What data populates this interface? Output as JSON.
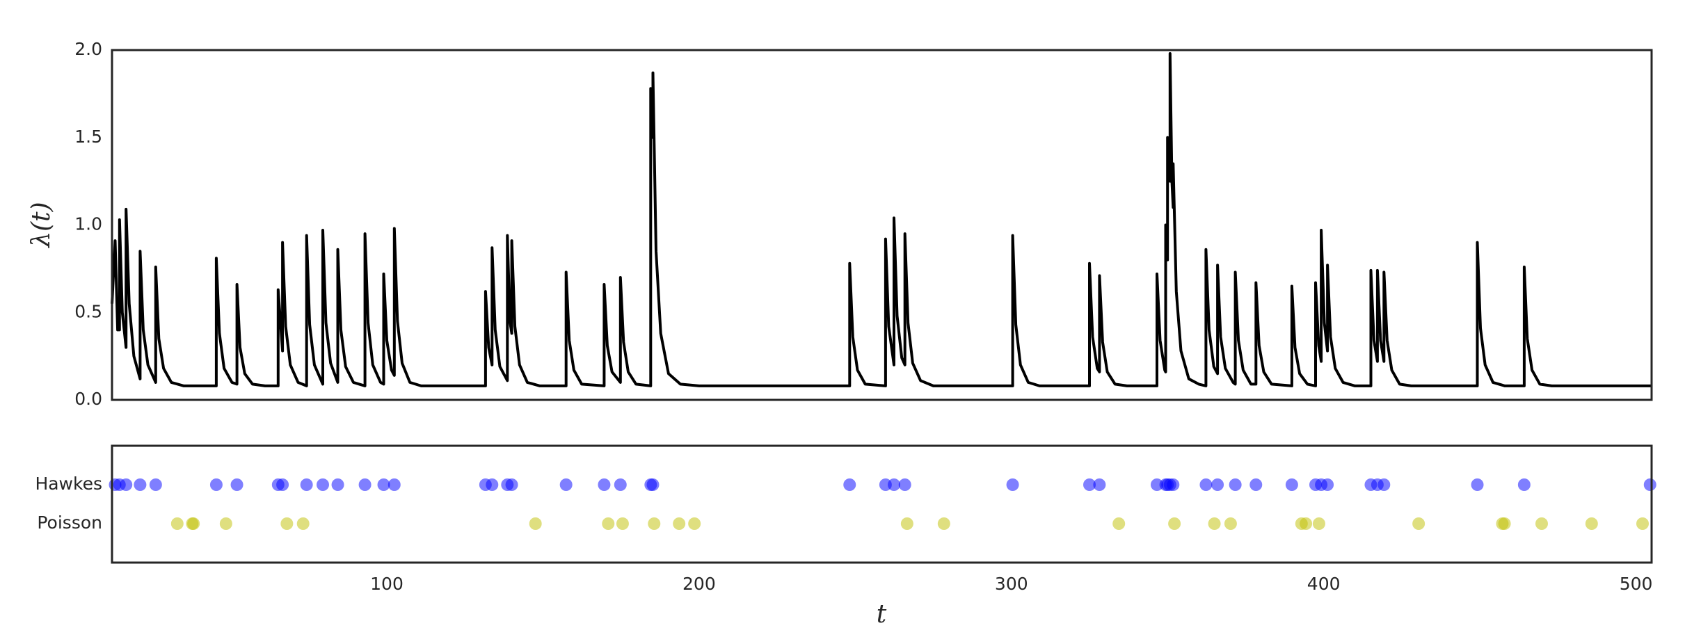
{
  "chart_data": [
    {
      "type": "line",
      "ylabel": "λ(t)",
      "color": "#000000",
      "xlim": [
        12,
        505
      ],
      "ylim": [
        0,
        2
      ],
      "yticks": [
        {
          "value": 0,
          "label": "0.0"
        },
        0.5,
        {
          "value": 1,
          "label": "1.0"
        },
        1.5,
        {
          "value": 2,
          "label": "2.0"
        }
      ],
      "x": [
        12,
        13,
        13.8,
        14.4,
        14.4,
        15.3,
        16.5,
        16.5,
        17.5,
        19,
        21,
        21,
        22,
        23.5,
        26,
        26,
        27,
        28.5,
        31,
        35,
        45.4,
        45.4,
        46.4,
        47.9,
        50.4,
        52,
        52,
        53,
        54.5,
        57,
        61,
        65.2,
        65.2,
        66.6,
        66.6,
        67.6,
        69.1,
        71.6,
        74.3,
        74.3,
        75.3,
        76.8,
        79.5,
        79.5,
        80.5,
        82,
        84.3,
        84.3,
        85.3,
        86.8,
        89.3,
        93,
        93,
        94,
        95.5,
        98,
        99,
        99,
        100,
        101.5,
        102.4,
        102.4,
        103.4,
        104.9,
        107.4,
        111,
        131.6,
        131.6,
        132.6,
        133.7,
        133.7,
        134.7,
        136.2,
        138.6,
        138.6,
        139.4,
        140,
        140,
        141,
        142.5,
        145,
        149,
        157.4,
        157.4,
        158.4,
        159.9,
        162.4,
        169.6,
        169.6,
        170.6,
        172.1,
        174.8,
        174.8,
        175.8,
        177.3,
        179.8,
        184.5,
        184.5,
        185.2,
        185.2,
        186.2,
        187.7,
        190.2,
        194,
        200,
        248.2,
        248.2,
        249.2,
        250.7,
        253.2,
        259.7,
        259.7,
        260.7,
        262.4,
        262.4,
        263.4,
        264.9,
        265.9,
        265.9,
        266.9,
        268.4,
        270.9,
        275,
        300.4,
        300.4,
        301.4,
        302.9,
        305.4,
        309,
        325,
        325,
        326,
        327.5,
        328.2,
        328.2,
        329.2,
        330.7,
        333.2,
        337,
        346.6,
        346.6,
        347.6,
        349.1,
        349.4,
        349.4,
        350,
        350,
        350.8,
        350.8,
        351.4,
        351.8,
        351.8,
        352.8,
        354.3,
        356.8,
        360,
        362.3,
        362.3,
        363.3,
        364.8,
        366,
        366,
        367,
        368.5,
        371,
        371.7,
        371.7,
        372.7,
        374.2,
        376.7,
        378.3,
        378.3,
        379.3,
        380.8,
        383.3,
        389.8,
        389.8,
        390.8,
        392.3,
        394.8,
        397.4,
        397.4,
        398.4,
        399.2,
        399.2,
        400.2,
        401.2,
        401.2,
        402.2,
        403.7,
        406.2,
        410,
        415.1,
        415.1,
        416.1,
        417.2,
        417.2,
        418.2,
        419.3,
        419.3,
        420.3,
        421.8,
        424.3,
        428,
        449.2,
        449.2,
        450.2,
        451.7,
        454.2,
        458,
        464.2,
        464.2,
        465.2,
        466.7,
        469.2,
        473,
        505
      ],
      "values": [
        0.55,
        0.91,
        0.4,
        0.4,
        1.03,
        0.5,
        0.3,
        1.09,
        0.55,
        0.25,
        0.12,
        0.85,
        0.4,
        0.2,
        0.1,
        0.76,
        0.35,
        0.18,
        0.1,
        0.08,
        0.08,
        0.81,
        0.38,
        0.18,
        0.1,
        0.09,
        0.66,
        0.3,
        0.15,
        0.09,
        0.08,
        0.08,
        0.63,
        0.28,
        0.9,
        0.42,
        0.2,
        0.1,
        0.08,
        0.94,
        0.43,
        0.2,
        0.09,
        0.97,
        0.44,
        0.21,
        0.1,
        0.86,
        0.4,
        0.19,
        0.1,
        0.08,
        0.95,
        0.44,
        0.2,
        0.1,
        0.09,
        0.72,
        0.34,
        0.17,
        0.14,
        0.98,
        0.45,
        0.21,
        0.1,
        0.08,
        0.08,
        0.62,
        0.3,
        0.2,
        0.87,
        0.4,
        0.19,
        0.11,
        0.94,
        0.45,
        0.38,
        0.91,
        0.42,
        0.2,
        0.1,
        0.08,
        0.08,
        0.73,
        0.34,
        0.17,
        0.09,
        0.08,
        0.66,
        0.31,
        0.16,
        0.1,
        0.7,
        0.33,
        0.16,
        0.09,
        0.08,
        1.78,
        1.5,
        1.87,
        0.85,
        0.38,
        0.15,
        0.09,
        0.08,
        0.08,
        0.78,
        0.36,
        0.17,
        0.09,
        0.08,
        0.92,
        0.42,
        0.2,
        1.04,
        0.48,
        0.24,
        0.2,
        0.95,
        0.44,
        0.21,
        0.11,
        0.08,
        0.08,
        0.94,
        0.43,
        0.2,
        0.1,
        0.08,
        0.08,
        0.78,
        0.36,
        0.18,
        0.16,
        0.71,
        0.33,
        0.16,
        0.09,
        0.08,
        0.08,
        0.72,
        0.34,
        0.17,
        0.16,
        1.0,
        0.8,
        1.5,
        1.25,
        1.98,
        1.25,
        1.1,
        1.35,
        0.62,
        0.28,
        0.12,
        0.09,
        0.08,
        0.86,
        0.4,
        0.19,
        0.15,
        0.77,
        0.36,
        0.18,
        0.1,
        0.09,
        0.73,
        0.34,
        0.17,
        0.09,
        0.09,
        0.67,
        0.31,
        0.16,
        0.09,
        0.08,
        0.65,
        0.3,
        0.15,
        0.09,
        0.08,
        0.67,
        0.31,
        0.22,
        0.97,
        0.44,
        0.28,
        0.77,
        0.36,
        0.18,
        0.1,
        0.08,
        0.08,
        0.74,
        0.34,
        0.22,
        0.74,
        0.34,
        0.22,
        0.73,
        0.34,
        0.17,
        0.09,
        0.08,
        0.08,
        0.9,
        0.41,
        0.2,
        0.1,
        0.08,
        0.08,
        0.76,
        0.35,
        0.17,
        0.09,
        0.08,
        0.08
      ]
    },
    {
      "type": "scatter",
      "xlabel": "t",
      "alpha": 0.5,
      "xlim": [
        12,
        505
      ],
      "xticks": [
        100,
        200,
        300,
        400,
        500
      ],
      "series": [
        {
          "name": "Hawkes",
          "color": "#0000ff",
          "x": [
            13,
            14.4,
            16.5,
            21,
            26,
            45.4,
            52,
            65.2,
            66.6,
            74.3,
            79.5,
            84.3,
            93,
            99,
            102.4,
            131.6,
            133.7,
            138.6,
            140,
            157.4,
            169.6,
            174.8,
            184.5,
            185.2,
            248.2,
            259.7,
            262.4,
            265.9,
            300.4,
            325,
            328.2,
            346.6,
            349.4,
            350,
            350.8,
            351.8,
            362.3,
            366,
            371.7,
            378.3,
            389.8,
            397.4,
            399.2,
            401.2,
            415.1,
            417.2,
            419.3,
            449.2,
            464.2,
            504.5
          ]
        },
        {
          "name": "Poisson",
          "color": "#bfbf00",
          "x": [
            32.9,
            37.7,
            38.1,
            48.5,
            68,
            73.2,
            147.6,
            170.9,
            175.5,
            185.6,
            193.6,
            198.5,
            266.6,
            278.4,
            334.4,
            352.2,
            365,
            370.2,
            392.9,
            394.3,
            398.5,
            430.4,
            457.2,
            457.9,
            469.8,
            485.8,
            502.1
          ]
        }
      ]
    }
  ]
}
